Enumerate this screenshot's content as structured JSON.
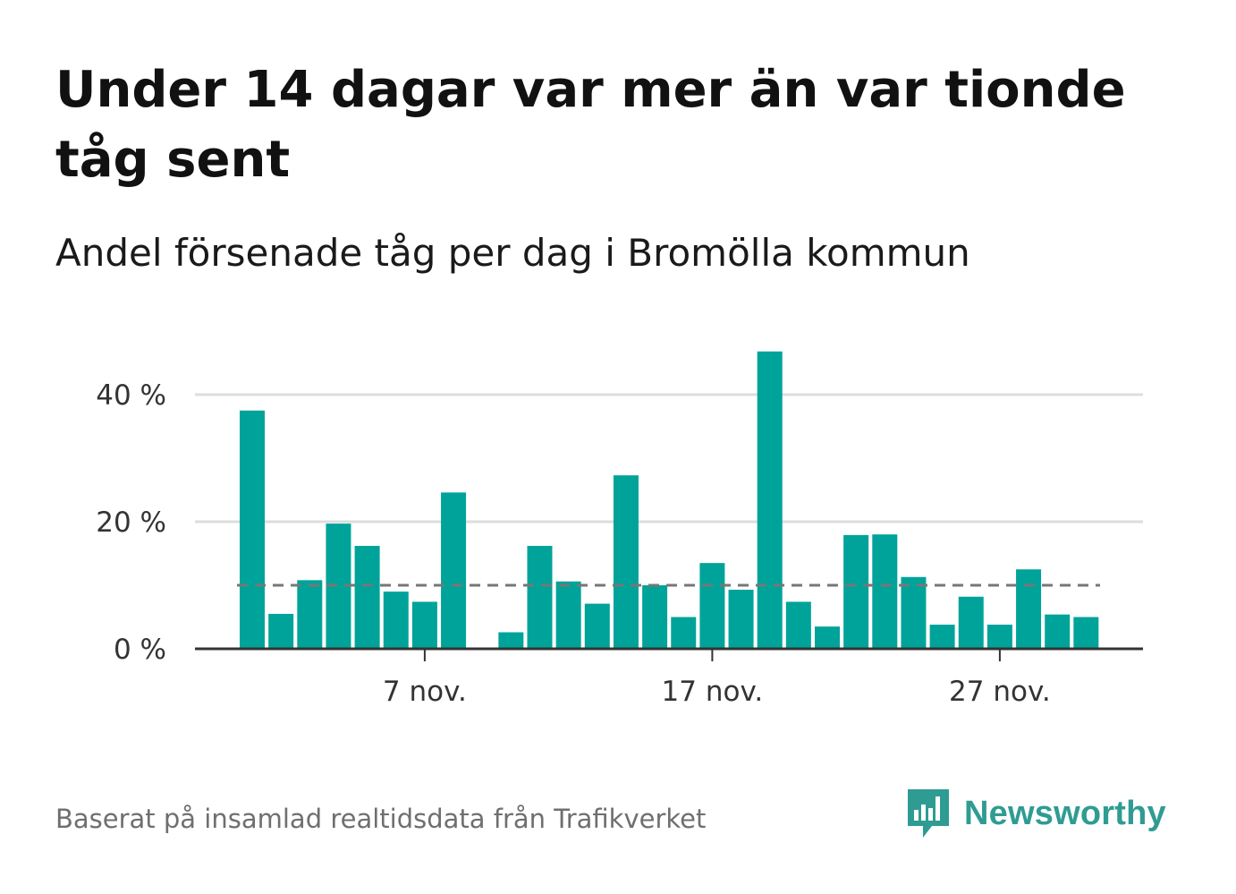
{
  "header": {
    "title": "Under 14 dagar var mer än var tionde tåg sent",
    "subtitle": "Andel försenade tåg per dag i Bromölla kommun"
  },
  "footer": {
    "source": "Baserat på insamlad realtidsdata från Trafikverket",
    "brand": "Newsworthy"
  },
  "colors": {
    "bar": "#00a39a",
    "reference_line": "#777777",
    "grid": "#dddddd",
    "axis": "#333333",
    "brand": "#2f9c93"
  },
  "chart_data": {
    "type": "bar",
    "title": "Under 14 dagar var mer än var tionde tåg sent",
    "subtitle": "Andel försenade tåg per dag i Bromölla kommun",
    "x_unit": "day of November",
    "categories": [
      1,
      2,
      3,
      4,
      5,
      6,
      7,
      8,
      9,
      10,
      11,
      12,
      13,
      14,
      15,
      16,
      17,
      18,
      19,
      20,
      21,
      22,
      23,
      24,
      25,
      26,
      27,
      28,
      29,
      30
    ],
    "values": [
      37.5,
      5.5,
      10.8,
      19.7,
      16.2,
      9.0,
      7.4,
      24.6,
      0,
      2.6,
      16.2,
      10.6,
      7.1,
      27.3,
      10.0,
      5.0,
      13.5,
      9.3,
      46.8,
      7.4,
      3.5,
      17.9,
      18.0,
      11.3,
      3.8,
      8.2,
      3.8,
      12.5,
      5.4,
      5.0
    ],
    "reference_line": 10,
    "ylim": [
      0,
      50
    ],
    "yticks": [
      {
        "value": 0,
        "label": "0 %"
      },
      {
        "value": 20,
        "label": "20 %"
      },
      {
        "value": 40,
        "label": "40 %"
      }
    ],
    "xticks": [
      {
        "value": 7,
        "label": "7 nov."
      },
      {
        "value": 17,
        "label": "17 nov."
      },
      {
        "value": 27,
        "label": "27 nov."
      }
    ],
    "grid": true,
    "legend": "none"
  }
}
